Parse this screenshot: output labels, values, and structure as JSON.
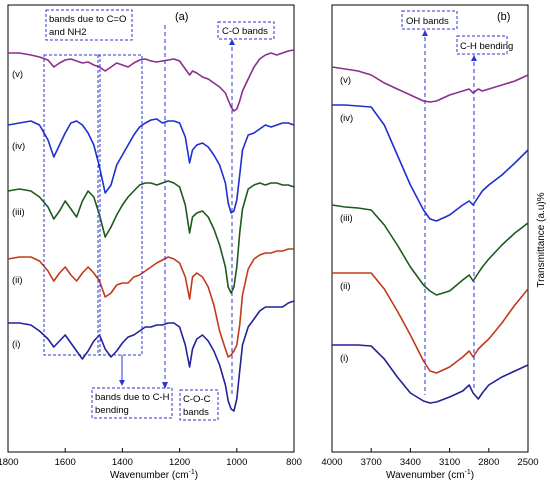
{
  "chart_data": [
    {
      "type": "line",
      "panel_label": "(a)",
      "xlabel": "Wavenumber (cm",
      "xlabel_sup": "-1",
      "xlabel_close": ")",
      "ylabel": "",
      "xlim": [
        1800,
        800
      ],
      "x_ticks": [
        "1800",
        "1600",
        "1400",
        "1200",
        "1000",
        "800"
      ],
      "x_tick_values": [
        1800,
        1600,
        1400,
        1200,
        1000,
        800
      ],
      "series": [
        {
          "name": "(v)",
          "color": "#8b2f8b",
          "x": [
            1800,
            1760,
            1720,
            1690,
            1660,
            1640,
            1620,
            1600,
            1580,
            1560,
            1540,
            1520,
            1500,
            1480,
            1460,
            1440,
            1420,
            1400,
            1380,
            1360,
            1340,
            1320,
            1300,
            1280,
            1260,
            1240,
            1220,
            1200,
            1180,
            1165,
            1155,
            1140,
            1120,
            1100,
            1080,
            1060,
            1040,
            1030,
            1020,
            1010,
            1000,
            990,
            980,
            960,
            940,
            920,
            900,
            880,
            860,
            840,
            820,
            800
          ],
          "y": [
            48,
            48,
            50,
            52,
            55,
            62,
            58,
            55,
            54,
            56,
            58,
            57,
            60,
            62,
            66,
            62,
            58,
            60,
            62,
            58,
            55,
            54,
            56,
            57,
            56,
            55,
            54,
            56,
            64,
            70,
            66,
            68,
            72,
            74,
            78,
            82,
            88,
            95,
            102,
            106,
            104,
            96,
            86,
            74,
            62,
            54,
            50,
            48,
            50,
            48,
            46,
            45
          ]
        },
        {
          "name": "(iv)",
          "color": "#1f2fd0",
          "x": [
            1800,
            1760,
            1720,
            1690,
            1660,
            1640,
            1620,
            1600,
            1580,
            1560,
            1540,
            1520,
            1500,
            1480,
            1460,
            1440,
            1420,
            1400,
            1380,
            1360,
            1340,
            1320,
            1300,
            1280,
            1260,
            1240,
            1220,
            1200,
            1180,
            1165,
            1155,
            1140,
            1120,
            1100,
            1080,
            1060,
            1040,
            1030,
            1020,
            1010,
            1000,
            990,
            980,
            960,
            940,
            920,
            900,
            880,
            860,
            840,
            820,
            800
          ],
          "y": [
            120,
            118,
            116,
            120,
            135,
            152,
            140,
            128,
            118,
            116,
            120,
            128,
            140,
            162,
            188,
            180,
            160,
            150,
            140,
            130,
            122,
            118,
            115,
            114,
            118,
            116,
            116,
            118,
            132,
            158,
            145,
            140,
            138,
            142,
            150,
            160,
            178,
            198,
            208,
            206,
            195,
            170,
            145,
            130,
            128,
            124,
            120,
            122,
            120,
            118,
            118,
            120
          ]
        },
        {
          "name": "(iii)",
          "color": "#1e5a1e",
          "x": [
            1800,
            1760,
            1720,
            1690,
            1660,
            1640,
            1620,
            1600,
            1580,
            1560,
            1540,
            1520,
            1500,
            1480,
            1460,
            1440,
            1420,
            1400,
            1380,
            1360,
            1340,
            1320,
            1300,
            1280,
            1260,
            1240,
            1220,
            1200,
            1180,
            1165,
            1155,
            1140,
            1120,
            1100,
            1080,
            1060,
            1040,
            1030,
            1020,
            1010,
            1000,
            990,
            980,
            960,
            940,
            920,
            900,
            880,
            860,
            840,
            820,
            800
          ],
          "y": [
            186,
            184,
            186,
            192,
            202,
            214,
            206,
            196,
            204,
            212,
            196,
            186,
            192,
            210,
            232,
            222,
            210,
            200,
            192,
            186,
            180,
            178,
            178,
            180,
            178,
            176,
            178,
            182,
            200,
            228,
            212,
            208,
            206,
            212,
            224,
            240,
            262,
            282,
            288,
            282,
            262,
            228,
            204,
            184,
            180,
            178,
            180,
            178,
            178,
            180,
            180,
            182
          ]
        },
        {
          "name": "(ii)",
          "color": "#c23a1a",
          "x": [
            1800,
            1760,
            1720,
            1690,
            1660,
            1640,
            1620,
            1600,
            1580,
            1560,
            1540,
            1520,
            1500,
            1480,
            1460,
            1440,
            1420,
            1400,
            1380,
            1360,
            1340,
            1320,
            1300,
            1280,
            1260,
            1240,
            1220,
            1200,
            1180,
            1165,
            1155,
            1140,
            1120,
            1100,
            1080,
            1060,
            1040,
            1030,
            1020,
            1010,
            1000,
            990,
            980,
            960,
            940,
            920,
            900,
            880,
            860,
            840,
            820,
            800
          ],
          "y": [
            254,
            252,
            252,
            256,
            266,
            276,
            268,
            262,
            270,
            276,
            268,
            262,
            268,
            276,
            292,
            288,
            280,
            278,
            278,
            272,
            270,
            266,
            262,
            258,
            255,
            252,
            254,
            258,
            272,
            294,
            272,
            268,
            272,
            282,
            300,
            326,
            344,
            352,
            350,
            346,
            340,
            320,
            290,
            264,
            254,
            250,
            248,
            248,
            246,
            246,
            244,
            244
          ]
        },
        {
          "name": "(i)",
          "color": "#22229a",
          "x": [
            1800,
            1760,
            1720,
            1690,
            1660,
            1640,
            1620,
            1600,
            1580,
            1560,
            1540,
            1520,
            1500,
            1480,
            1460,
            1440,
            1420,
            1400,
            1380,
            1360,
            1340,
            1320,
            1300,
            1280,
            1260,
            1240,
            1220,
            1200,
            1180,
            1165,
            1155,
            1140,
            1120,
            1100,
            1080,
            1060,
            1040,
            1030,
            1020,
            1010,
            1000,
            990,
            980,
            960,
            940,
            920,
            900,
            880,
            860,
            840,
            820,
            800
          ],
          "y": [
            318,
            318,
            320,
            326,
            334,
            342,
            336,
            330,
            338,
            346,
            354,
            346,
            336,
            330,
            344,
            352,
            346,
            338,
            332,
            330,
            326,
            322,
            322,
            320,
            320,
            318,
            318,
            322,
            340,
            362,
            344,
            334,
            330,
            336,
            346,
            360,
            380,
            396,
            404,
            406,
            394,
            366,
            340,
            322,
            314,
            306,
            302,
            302,
            302,
            302,
            298,
            296
          ]
        }
      ],
      "series_labels": [
        "(v)",
        "(iv)",
        "(iii)",
        "(ii)",
        "(i)"
      ],
      "annotations": {
        "c_o_bands": "C-O bands",
        "c_eq_o_line1": "bands due to C=O",
        "c_eq_o_line2": "and NH2",
        "c_h_line1": "bands due to C-H",
        "c_h_line2": "bending",
        "coc_line1": "C-O-C",
        "coc_line2": "bands"
      },
      "grid": false
    },
    {
      "type": "line",
      "panel_label": "(b)",
      "xlabel": "Wavenumber (cm",
      "xlabel_sup": "-1",
      "xlabel_close": ")",
      "ylabel": "Transmittance (a.u)%",
      "xlim": [
        4000,
        2500
      ],
      "x_ticks": [
        "4000",
        "3700",
        "3400",
        "3100",
        "2800",
        "2500"
      ],
      "x_tick_values": [
        4000,
        3700,
        3400,
        3100,
        2800,
        2500
      ],
      "series": [
        {
          "name": "(v)",
          "color": "#8b2f8b",
          "x": [
            4000,
            3900,
            3800,
            3700,
            3600,
            3500,
            3400,
            3300,
            3250,
            3200,
            3100,
            3000,
            2950,
            2920,
            2880,
            2850,
            2800,
            2700,
            2600,
            2500
          ],
          "y": [
            62,
            64,
            66,
            70,
            78,
            84,
            90,
            96,
            97,
            96,
            90,
            86,
            84,
            88,
            84,
            86,
            84,
            80,
            76,
            70
          ]
        },
        {
          "name": "(iv)",
          "color": "#1f2fd0",
          "x": [
            4000,
            3900,
            3800,
            3700,
            3600,
            3500,
            3400,
            3300,
            3250,
            3200,
            3100,
            3000,
            2950,
            2920,
            2880,
            2850,
            2800,
            2700,
            2600,
            2500
          ],
          "y": [
            100,
            100,
            101,
            102,
            120,
            150,
            180,
            205,
            214,
            216,
            210,
            200,
            196,
            200,
            192,
            186,
            180,
            170,
            158,
            145
          ]
        },
        {
          "name": "(iii)",
          "color": "#1e5a1e",
          "x": [
            4000,
            3900,
            3800,
            3700,
            3600,
            3500,
            3400,
            3300,
            3250,
            3200,
            3100,
            3000,
            2950,
            2920,
            2880,
            2850,
            2800,
            2700,
            2600,
            2500
          ],
          "y": [
            200,
            202,
            203,
            205,
            220,
            240,
            262,
            280,
            286,
            290,
            286,
            275,
            270,
            276,
            268,
            262,
            254,
            240,
            228,
            218
          ]
        },
        {
          "name": "(ii)",
          "color": "#c23a1a",
          "x": [
            4000,
            3900,
            3800,
            3700,
            3600,
            3500,
            3400,
            3300,
            3250,
            3200,
            3100,
            3000,
            2950,
            2920,
            2880,
            2850,
            2800,
            2700,
            2600,
            2500
          ],
          "y": [
            268,
            268,
            268,
            268,
            284,
            306,
            330,
            356,
            366,
            368,
            362,
            352,
            346,
            352,
            344,
            340,
            334,
            318,
            300,
            284
          ]
        },
        {
          "name": "(i)",
          "color": "#22229a",
          "x": [
            4000,
            3900,
            3800,
            3700,
            3600,
            3500,
            3400,
            3300,
            3250,
            3200,
            3100,
            3000,
            2950,
            2920,
            2880,
            2850,
            2800,
            2700,
            2600,
            2500
          ],
          "y": [
            340,
            340,
            340,
            341,
            354,
            372,
            388,
            396,
            398,
            397,
            392,
            386,
            380,
            388,
            394,
            388,
            380,
            372,
            366,
            360
          ]
        }
      ],
      "series_labels": [
        "(v)",
        "(iv)",
        "(iii)",
        "(ii)",
        "(i)"
      ],
      "annotations": {
        "oh_bands": "OH bands",
        "c_h_bending": "C-H bending"
      },
      "grid": false
    }
  ]
}
